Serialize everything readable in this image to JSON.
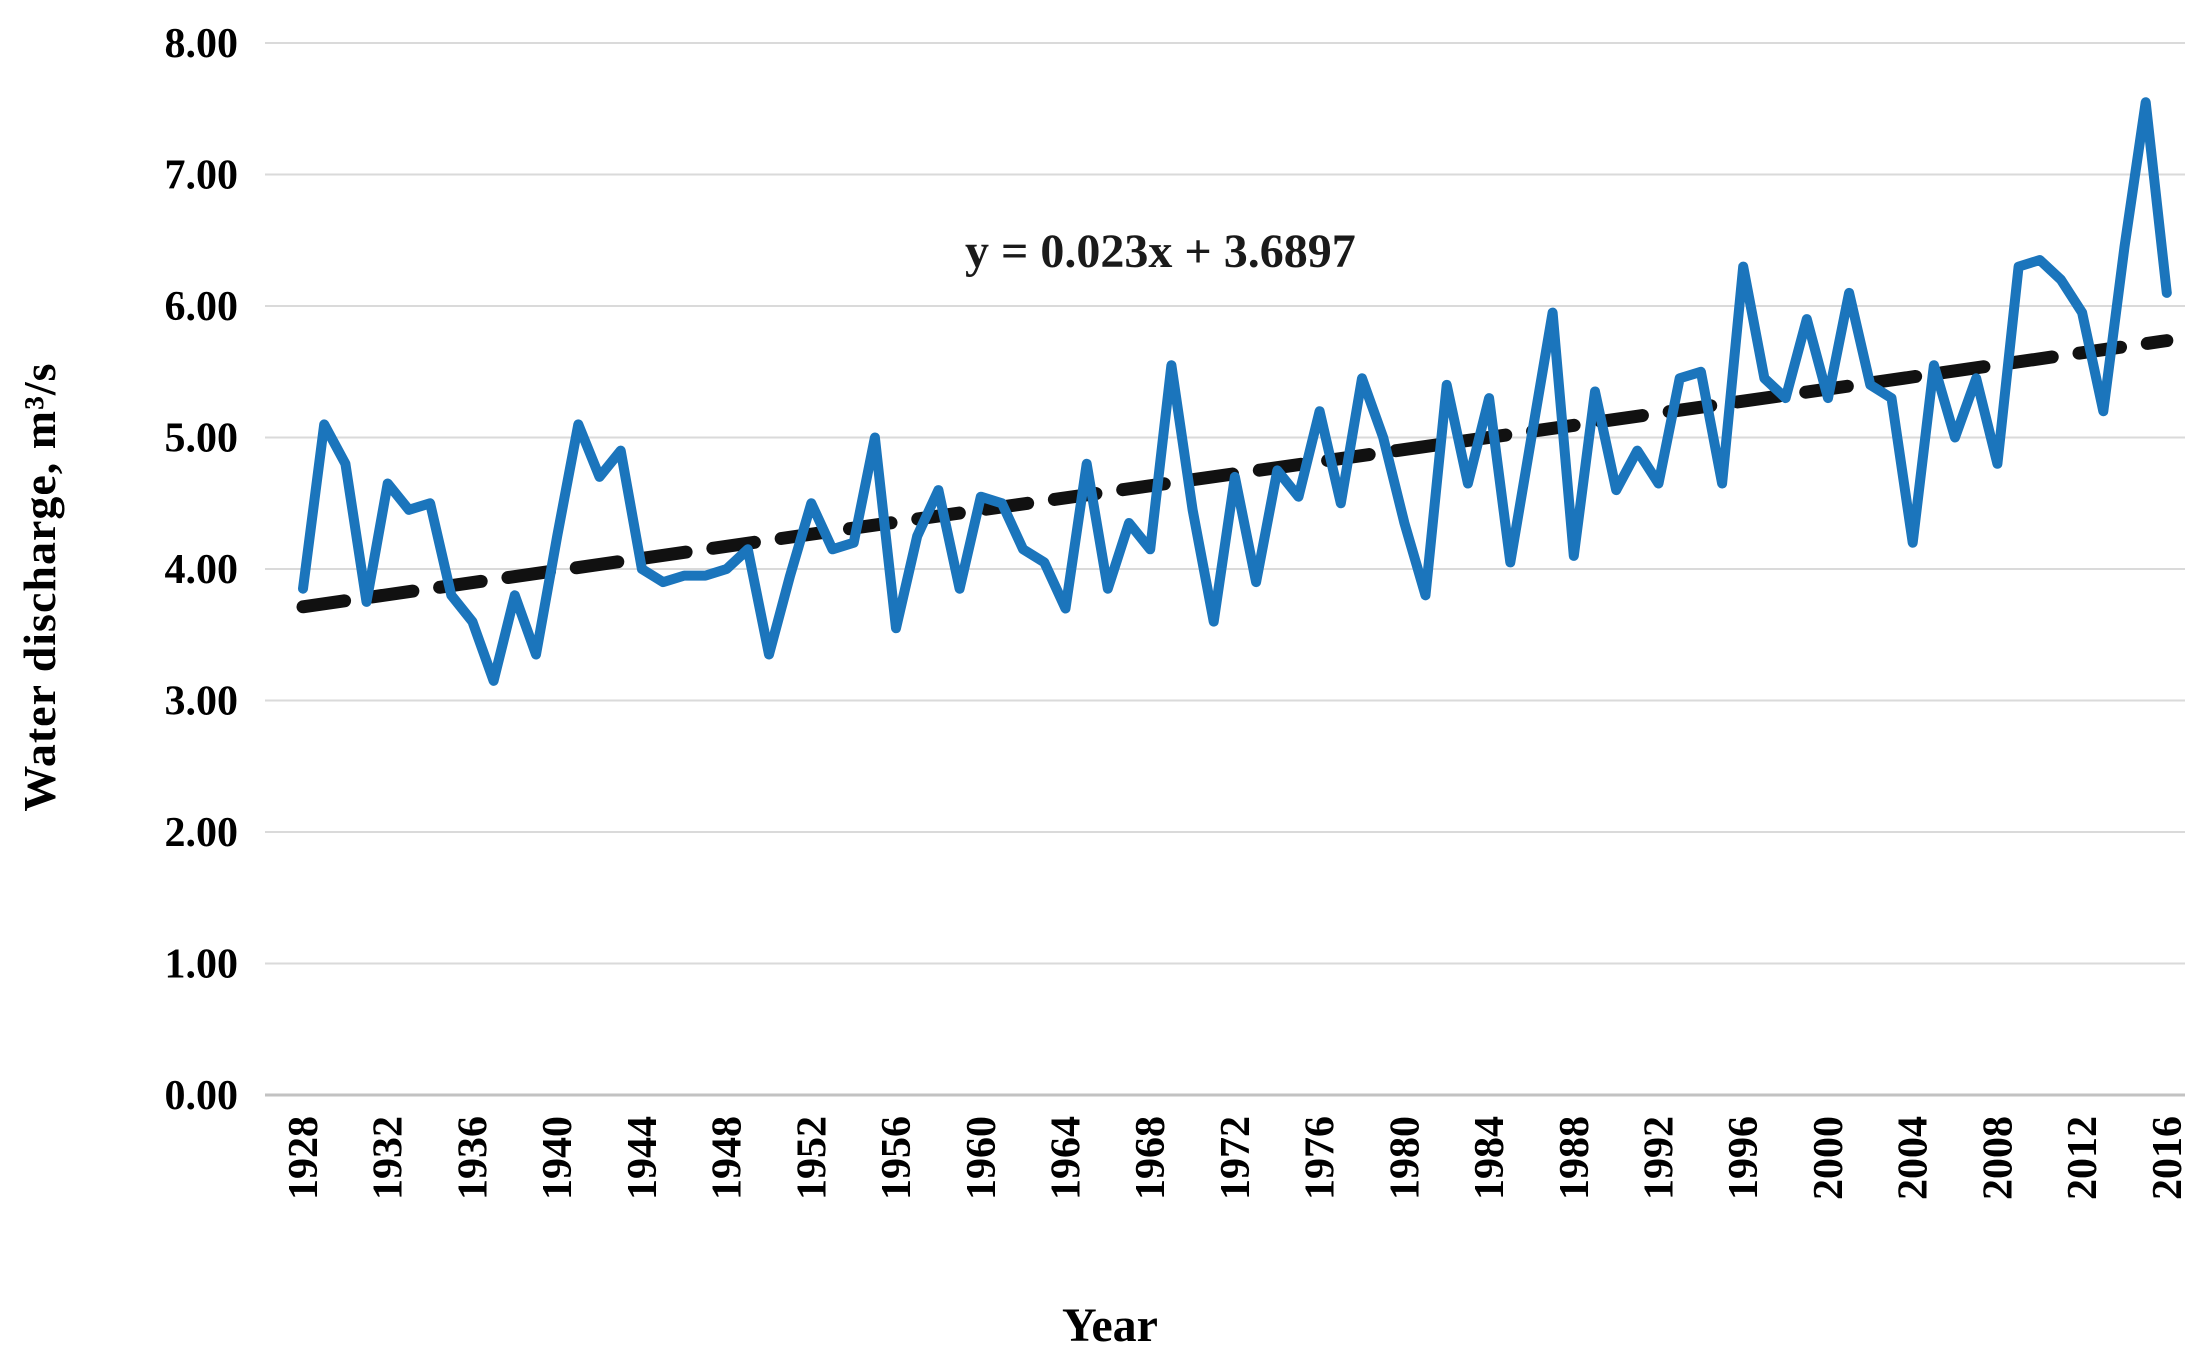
{
  "figure": {
    "background": "#ffffff",
    "annotation": "y = 0.023x + 3.6897",
    "ylabel": "Water discharge, m³/s",
    "xlabel": "Year"
  },
  "chart_data": {
    "type": "line",
    "title": "",
    "xlabel": "Year",
    "ylabel": "Water discharge, m³/s",
    "ylim": [
      0,
      8
    ],
    "grid": "horizontal",
    "legend": "none",
    "annotation": "y = 0.023x + 3.6897",
    "y_tick_labels": [
      "0.00",
      "1.00",
      "2.00",
      "3.00",
      "4.00",
      "5.00",
      "6.00",
      "7.00",
      "8.00"
    ],
    "x_tick_years": [
      1928,
      1932,
      1936,
      1940,
      1944,
      1948,
      1952,
      1956,
      1960,
      1964,
      1968,
      1972,
      1976,
      1980,
      1984,
      1988,
      1992,
      1996,
      2000,
      2004,
      2008,
      2012,
      2016
    ],
    "years": [
      1928,
      1929,
      1930,
      1931,
      1932,
      1933,
      1934,
      1935,
      1936,
      1937,
      1938,
      1939,
      1940,
      1941,
      1942,
      1943,
      1944,
      1945,
      1946,
      1947,
      1948,
      1949,
      1950,
      1951,
      1952,
      1953,
      1954,
      1955,
      1956,
      1957,
      1958,
      1959,
      1960,
      1961,
      1962,
      1963,
      1964,
      1965,
      1966,
      1967,
      1968,
      1969,
      1970,
      1971,
      1972,
      1973,
      1974,
      1975,
      1976,
      1977,
      1978,
      1979,
      1980,
      1981,
      1982,
      1983,
      1984,
      1985,
      1986,
      1987,
      1988,
      1989,
      1990,
      1991,
      1992,
      1993,
      1994,
      1995,
      1996,
      1997,
      1998,
      1999,
      2000,
      2001,
      2002,
      2003,
      2004,
      2005,
      2006,
      2007,
      2008,
      2009,
      2010,
      2011,
      2012,
      2013,
      2014,
      2015,
      2016
    ],
    "series": [
      {
        "name": "Water discharge, m3/s",
        "values": [
          3.85,
          5.1,
          4.8,
          3.75,
          4.65,
          4.45,
          4.5,
          3.8,
          3.6,
          3.15,
          3.8,
          3.35,
          4.25,
          5.1,
          4.7,
          4.9,
          4.0,
          3.9,
          3.95,
          3.95,
          4.0,
          4.15,
          3.35,
          3.95,
          4.5,
          4.15,
          4.2,
          5.0,
          3.55,
          4.25,
          4.6,
          3.85,
          4.55,
          4.5,
          4.15,
          4.05,
          3.7,
          4.8,
          3.85,
          4.35,
          4.15,
          5.55,
          4.45,
          3.6,
          4.7,
          3.9,
          4.75,
          4.55,
          5.2,
          4.5,
          5.45,
          5.0,
          4.35,
          3.8,
          5.4,
          4.65,
          5.3,
          4.05,
          5.0,
          5.95,
          4.1,
          5.35,
          4.6,
          4.9,
          4.65,
          5.45,
          5.5,
          4.65,
          6.3,
          5.45,
          5.3,
          5.9,
          5.3,
          6.1,
          5.4,
          5.3,
          4.2,
          5.55,
          5.0,
          5.45,
          4.8,
          6.3,
          6.35,
          6.2,
          5.95,
          5.2,
          6.45,
          7.55,
          6.1
        ]
      }
    ],
    "trendline": {
      "equation": "y = 0.023x + 3.6897",
      "slope": 0.023,
      "intercept": 3.6897,
      "x_definition": "index 1..89 over years 1928..2016",
      "style": "dashed-black"
    },
    "colors": {
      "line": "#1B75BC",
      "trend": "#111111",
      "grid": "#DADADA",
      "axis": "#C2C2C2",
      "text": "#000000"
    }
  }
}
